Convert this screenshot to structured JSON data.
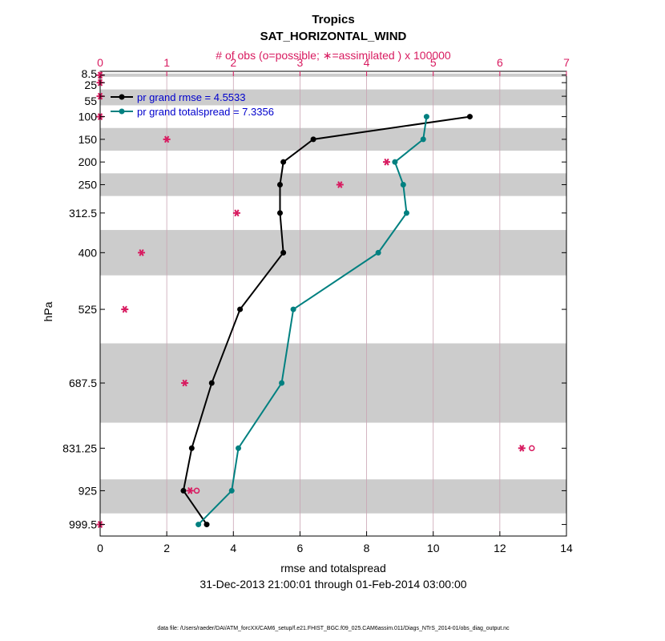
{
  "chart_data": {
    "type": "line",
    "title": "Tropics",
    "subtitle": "SAT_HORIZONTAL_WIND",
    "top_axis_label": "# of obs (o=possible; ∗=assimilated ) x 100000",
    "xlabel": "rmse and totalspread",
    "ylabel": "hPa",
    "date_range": "31-Dec-2013 21:00:01 through 01-Feb-2014 03:00:00",
    "footnote": "data file: /Users/raeder/DAI/ATM_forcXX/CAM6_setup/f.e21.FHIST_BGC.f09_025.CAM6assim.011/Diags_NTrS_2014-01/obs_diag_output.nc",
    "xlim": [
      0,
      14
    ],
    "xticks": [
      "0",
      "2",
      "4",
      "6",
      "8",
      "10",
      "12",
      "14"
    ],
    "top_xlim": [
      0,
      7
    ],
    "top_xticks": [
      "0",
      "1",
      "2",
      "3",
      "4",
      "5",
      "6",
      "7"
    ],
    "ylim_hpa": [
      1025,
      0
    ],
    "levels": [
      8.5,
      25,
      55,
      100,
      150,
      200,
      250,
      312.5,
      400,
      525,
      687.5,
      831.25,
      925,
      999.5
    ],
    "level_labels": [
      "8.5",
      "25",
      "55",
      "100",
      "150",
      "200",
      "250",
      "312.5",
      "400",
      "525",
      "687.5",
      "831.25",
      "925",
      "999.5"
    ],
    "bands_hpa": [
      [
        5,
        12
      ],
      [
        40,
        75
      ],
      [
        125,
        175
      ],
      [
        225,
        275
      ],
      [
        350,
        450
      ],
      [
        600,
        775
      ],
      [
        900,
        975
      ]
    ],
    "series": [
      {
        "name": "pr grand rmse",
        "legend": "pr grand rmse = 4.5533",
        "color": "#000000",
        "levels": [
          100,
          150,
          200,
          250,
          312.5,
          400,
          525,
          687.5,
          831.25,
          925,
          999.5
        ],
        "values": [
          11.1,
          6.4,
          5.5,
          5.4,
          5.4,
          5.5,
          4.2,
          3.35,
          2.75,
          2.5,
          3.2
        ]
      },
      {
        "name": "pr grand totalspread",
        "legend": "pr grand totalspread = 7.3356",
        "color": "#008080",
        "levels": [
          100,
          150,
          200,
          250,
          312.5,
          400,
          525,
          687.5,
          831.25,
          925,
          999.5
        ],
        "values": [
          9.8,
          9.7,
          8.85,
          9.1,
          9.2,
          8.35,
          5.8,
          5.45,
          4.15,
          3.95,
          2.95
        ]
      }
    ],
    "obs_assimilated": {
      "name": "# assimilated (x 100000)",
      "color": "#d81b60",
      "levels": [
        8.5,
        25,
        55,
        100,
        150,
        200,
        250,
        312.5,
        400,
        525,
        687.5,
        831.25,
        925,
        999.5
      ],
      "values": [
        0,
        0,
        0,
        0,
        1.0,
        4.3,
        3.6,
        2.05,
        0.62,
        0.37,
        1.27,
        6.33,
        1.35,
        0
      ]
    },
    "obs_possible": {
      "name": "# possible (x 100000)",
      "color": "#d81b60",
      "levels": [
        831.25,
        925
      ],
      "values": [
        6.48,
        1.45
      ]
    }
  }
}
